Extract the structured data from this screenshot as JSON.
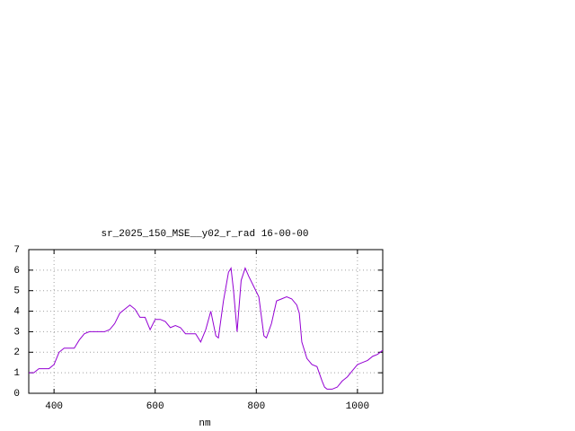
{
  "chart_data": {
    "type": "line",
    "title": "sr_2025_150_MSE__y02_r_rad 16-00-00",
    "x_label": "nm",
    "x": [
      350,
      360,
      370,
      380,
      390,
      400,
      410,
      420,
      430,
      440,
      450,
      460,
      470,
      480,
      490,
      500,
      510,
      520,
      530,
      540,
      550,
      560,
      570,
      580,
      590,
      600,
      610,
      620,
      630,
      640,
      650,
      660,
      670,
      680,
      690,
      700,
      710,
      720,
      725,
      735,
      745,
      750,
      755,
      762,
      770,
      778,
      785,
      795,
      805,
      815,
      820,
      830,
      840,
      850,
      860,
      870,
      880,
      885,
      890,
      900,
      910,
      920,
      930,
      935,
      940,
      950,
      960,
      970,
      980,
      990,
      1000,
      1010,
      1020,
      1030,
      1040,
      1050
    ],
    "series": [
      {
        "color": "#9400d3",
        "values": [
          1.0,
          1.0,
          1.2,
          1.2,
          1.2,
          1.4,
          2.0,
          2.2,
          2.2,
          2.2,
          2.6,
          2.9,
          3.0,
          3.0,
          3.0,
          3.0,
          3.1,
          3.4,
          3.9,
          4.1,
          4.3,
          4.1,
          3.7,
          3.7,
          3.1,
          3.6,
          3.6,
          3.5,
          3.2,
          3.3,
          3.2,
          2.9,
          2.9,
          2.9,
          2.5,
          3.1,
          4.0,
          2.8,
          2.7,
          4.5,
          5.9,
          6.1,
          5.0,
          3.0,
          5.5,
          6.1,
          5.7,
          5.2,
          4.7,
          2.8,
          2.7,
          3.4,
          4.5,
          4.6,
          4.7,
          4.6,
          4.3,
          3.9,
          2.5,
          1.7,
          1.4,
          1.3,
          0.6,
          0.3,
          0.2,
          0.2,
          0.3,
          0.6,
          0.8,
          1.1,
          1.4,
          1.5,
          1.6,
          1.8,
          1.9,
          2.1
        ]
      }
    ],
    "xlim": [
      350,
      1050
    ],
    "ylim": [
      0,
      7
    ],
    "xticks": [
      400,
      600,
      800,
      1000
    ],
    "yticks": [
      0,
      1,
      2,
      3,
      4,
      5,
      6,
      7
    ],
    "grid": true
  }
}
